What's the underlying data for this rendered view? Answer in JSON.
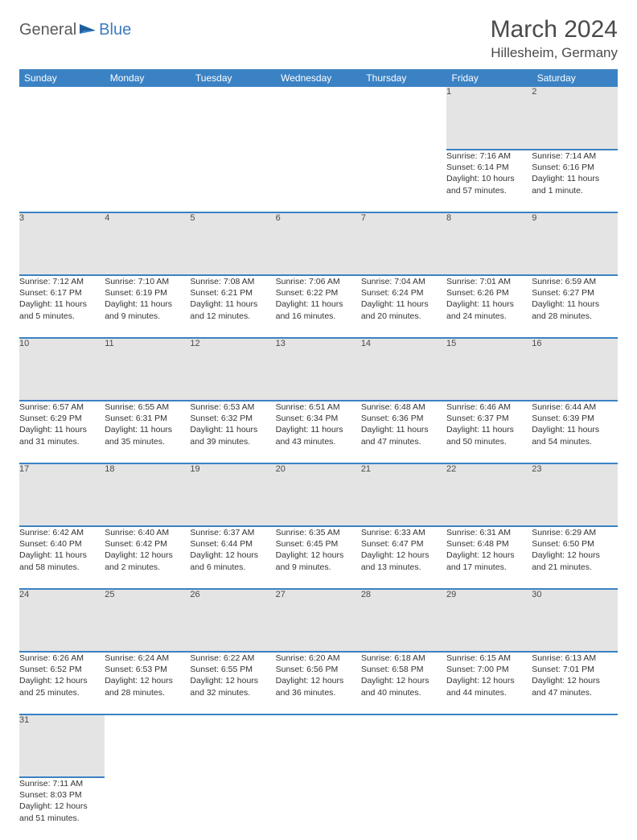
{
  "logo": {
    "text1": "General",
    "text2": "Blue"
  },
  "title": "March 2024",
  "location": "Hillesheim, Germany",
  "colors": {
    "header_bg": "#3b82c4",
    "header_text": "#ffffff",
    "daynum_bg": "#e4e4e4",
    "row_divider": "#3b82c4",
    "logo_gray": "#5a5a5a",
    "logo_blue": "#3b7bbf"
  },
  "weekdays": [
    "Sunday",
    "Monday",
    "Tuesday",
    "Wednesday",
    "Thursday",
    "Friday",
    "Saturday"
  ],
  "weeks": [
    [
      null,
      null,
      null,
      null,
      null,
      {
        "n": "1",
        "sr": "Sunrise: 7:16 AM",
        "ss": "Sunset: 6:14 PM",
        "d1": "Daylight: 10 hours",
        "d2": "and 57 minutes."
      },
      {
        "n": "2",
        "sr": "Sunrise: 7:14 AM",
        "ss": "Sunset: 6:16 PM",
        "d1": "Daylight: 11 hours",
        "d2": "and 1 minute."
      }
    ],
    [
      {
        "n": "3",
        "sr": "Sunrise: 7:12 AM",
        "ss": "Sunset: 6:17 PM",
        "d1": "Daylight: 11 hours",
        "d2": "and 5 minutes."
      },
      {
        "n": "4",
        "sr": "Sunrise: 7:10 AM",
        "ss": "Sunset: 6:19 PM",
        "d1": "Daylight: 11 hours",
        "d2": "and 9 minutes."
      },
      {
        "n": "5",
        "sr": "Sunrise: 7:08 AM",
        "ss": "Sunset: 6:21 PM",
        "d1": "Daylight: 11 hours",
        "d2": "and 12 minutes."
      },
      {
        "n": "6",
        "sr": "Sunrise: 7:06 AM",
        "ss": "Sunset: 6:22 PM",
        "d1": "Daylight: 11 hours",
        "d2": "and 16 minutes."
      },
      {
        "n": "7",
        "sr": "Sunrise: 7:04 AM",
        "ss": "Sunset: 6:24 PM",
        "d1": "Daylight: 11 hours",
        "d2": "and 20 minutes."
      },
      {
        "n": "8",
        "sr": "Sunrise: 7:01 AM",
        "ss": "Sunset: 6:26 PM",
        "d1": "Daylight: 11 hours",
        "d2": "and 24 minutes."
      },
      {
        "n": "9",
        "sr": "Sunrise: 6:59 AM",
        "ss": "Sunset: 6:27 PM",
        "d1": "Daylight: 11 hours",
        "d2": "and 28 minutes."
      }
    ],
    [
      {
        "n": "10",
        "sr": "Sunrise: 6:57 AM",
        "ss": "Sunset: 6:29 PM",
        "d1": "Daylight: 11 hours",
        "d2": "and 31 minutes."
      },
      {
        "n": "11",
        "sr": "Sunrise: 6:55 AM",
        "ss": "Sunset: 6:31 PM",
        "d1": "Daylight: 11 hours",
        "d2": "and 35 minutes."
      },
      {
        "n": "12",
        "sr": "Sunrise: 6:53 AM",
        "ss": "Sunset: 6:32 PM",
        "d1": "Daylight: 11 hours",
        "d2": "and 39 minutes."
      },
      {
        "n": "13",
        "sr": "Sunrise: 6:51 AM",
        "ss": "Sunset: 6:34 PM",
        "d1": "Daylight: 11 hours",
        "d2": "and 43 minutes."
      },
      {
        "n": "14",
        "sr": "Sunrise: 6:48 AM",
        "ss": "Sunset: 6:36 PM",
        "d1": "Daylight: 11 hours",
        "d2": "and 47 minutes."
      },
      {
        "n": "15",
        "sr": "Sunrise: 6:46 AM",
        "ss": "Sunset: 6:37 PM",
        "d1": "Daylight: 11 hours",
        "d2": "and 50 minutes."
      },
      {
        "n": "16",
        "sr": "Sunrise: 6:44 AM",
        "ss": "Sunset: 6:39 PM",
        "d1": "Daylight: 11 hours",
        "d2": "and 54 minutes."
      }
    ],
    [
      {
        "n": "17",
        "sr": "Sunrise: 6:42 AM",
        "ss": "Sunset: 6:40 PM",
        "d1": "Daylight: 11 hours",
        "d2": "and 58 minutes."
      },
      {
        "n": "18",
        "sr": "Sunrise: 6:40 AM",
        "ss": "Sunset: 6:42 PM",
        "d1": "Daylight: 12 hours",
        "d2": "and 2 minutes."
      },
      {
        "n": "19",
        "sr": "Sunrise: 6:37 AM",
        "ss": "Sunset: 6:44 PM",
        "d1": "Daylight: 12 hours",
        "d2": "and 6 minutes."
      },
      {
        "n": "20",
        "sr": "Sunrise: 6:35 AM",
        "ss": "Sunset: 6:45 PM",
        "d1": "Daylight: 12 hours",
        "d2": "and 9 minutes."
      },
      {
        "n": "21",
        "sr": "Sunrise: 6:33 AM",
        "ss": "Sunset: 6:47 PM",
        "d1": "Daylight: 12 hours",
        "d2": "and 13 minutes."
      },
      {
        "n": "22",
        "sr": "Sunrise: 6:31 AM",
        "ss": "Sunset: 6:48 PM",
        "d1": "Daylight: 12 hours",
        "d2": "and 17 minutes."
      },
      {
        "n": "23",
        "sr": "Sunrise: 6:29 AM",
        "ss": "Sunset: 6:50 PM",
        "d1": "Daylight: 12 hours",
        "d2": "and 21 minutes."
      }
    ],
    [
      {
        "n": "24",
        "sr": "Sunrise: 6:26 AM",
        "ss": "Sunset: 6:52 PM",
        "d1": "Daylight: 12 hours",
        "d2": "and 25 minutes."
      },
      {
        "n": "25",
        "sr": "Sunrise: 6:24 AM",
        "ss": "Sunset: 6:53 PM",
        "d1": "Daylight: 12 hours",
        "d2": "and 28 minutes."
      },
      {
        "n": "26",
        "sr": "Sunrise: 6:22 AM",
        "ss": "Sunset: 6:55 PM",
        "d1": "Daylight: 12 hours",
        "d2": "and 32 minutes."
      },
      {
        "n": "27",
        "sr": "Sunrise: 6:20 AM",
        "ss": "Sunset: 6:56 PM",
        "d1": "Daylight: 12 hours",
        "d2": "and 36 minutes."
      },
      {
        "n": "28",
        "sr": "Sunrise: 6:18 AM",
        "ss": "Sunset: 6:58 PM",
        "d1": "Daylight: 12 hours",
        "d2": "and 40 minutes."
      },
      {
        "n": "29",
        "sr": "Sunrise: 6:15 AM",
        "ss": "Sunset: 7:00 PM",
        "d1": "Daylight: 12 hours",
        "d2": "and 44 minutes."
      },
      {
        "n": "30",
        "sr": "Sunrise: 6:13 AM",
        "ss": "Sunset: 7:01 PM",
        "d1": "Daylight: 12 hours",
        "d2": "and 47 minutes."
      }
    ],
    [
      {
        "n": "31",
        "sr": "Sunrise: 7:11 AM",
        "ss": "Sunset: 8:03 PM",
        "d1": "Daylight: 12 hours",
        "d2": "and 51 minutes."
      },
      null,
      null,
      null,
      null,
      null,
      null
    ]
  ]
}
